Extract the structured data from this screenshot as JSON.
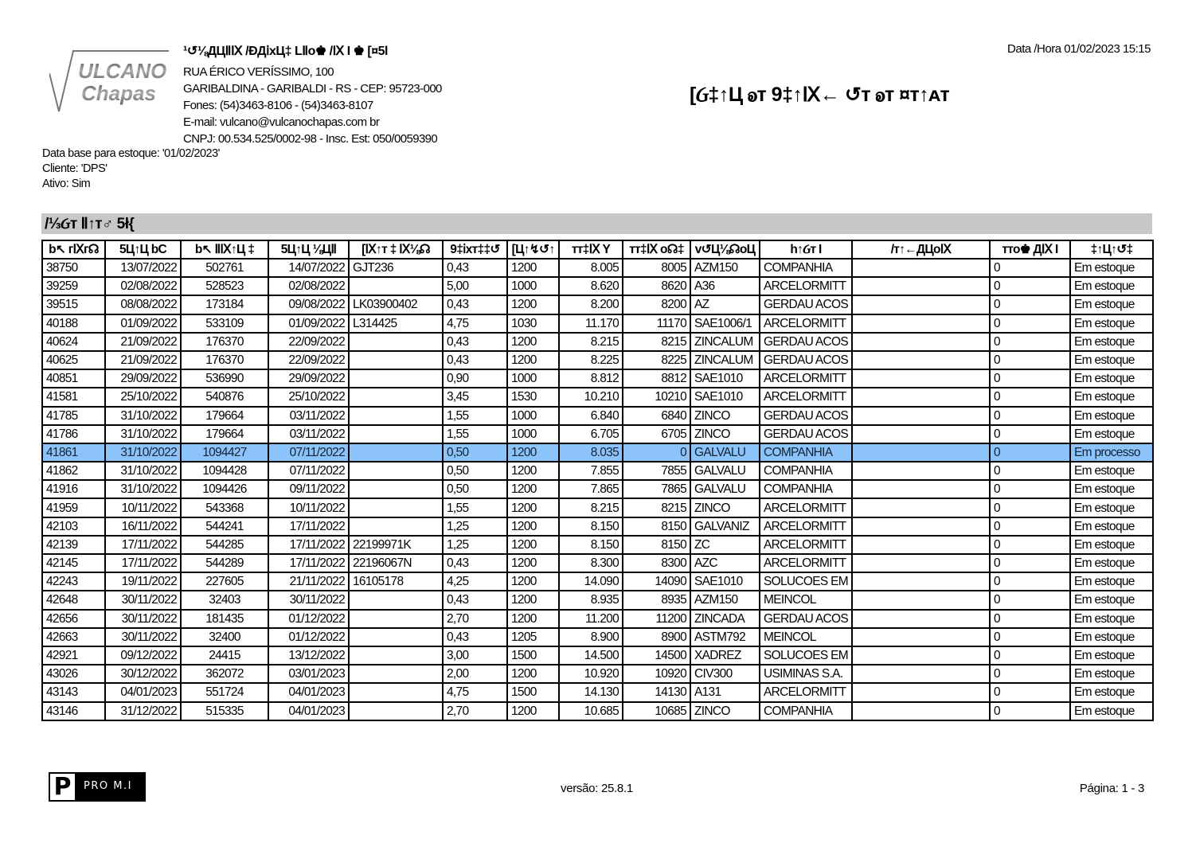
{
  "header": {
    "logo_text_line1": "ULCANO",
    "logo_text_line2": "Chapas",
    "company_name": "¹↺⅛ДЦⅡⅨ /ÐДⅰxЦ‡ LⅡo♚ /Ⅸ I ♚ [¤5l",
    "address_lines": [
      "RUA ÉRICO VERÍSSIMO, 100",
      "GARIBALDINA - GARIBALDI - RS - CEP: 95723-000",
      "Fones: (54)3463-8106 - (54)3463-8107",
      "E-mail: vulcano@vulcanochapas.com br",
      "CNPJ: 00.534.525/0002-98 - Insc. Est: 050/0059390"
    ],
    "datetime": "Data /Hora 01/02/2023 15:15",
    "report_title": "[Ᏽ‡↑Ц ꭷᴛ 9‡↑Ⅸ← ↺ᴛ ꭷᴛ ¤ᴛ↑ᴀᴛ"
  },
  "filters": [
    "Data base para estoque: '01/02/2023'",
    "Cliente: 'DPS'",
    "Ativo: Sim"
  ],
  "section_title": "/⅓Ᏽᴛ Ⅱ↑ᴛ♂ 5ł{",
  "table": {
    "columns": [
      "b↖ гⅨг☊",
      "5Ц↑Ц bC",
      "b↖ ⅡⅨ↑Ц ‡",
      "5Ц↑Ц ⅛ЦⅡ",
      "[Ⅸ↑ᴛ ‡ Ⅸ⅛☊",
      "9‡ⅰxᴛ‡‡↺",
      "[Ц↑↯↺↑",
      "ᴛт‡Ⅸ  Y",
      "ᴛт‡Ⅸ o☊‡",
      "v↺Ц⅛☊oЦ",
      "h↑Ᏽᴛ I",
      "/ᴛ↑←ДЦoⅨ",
      "ᴛто♚ ДⅨ I",
      "‡↑Ц↑↺‡"
    ],
    "rows": [
      [
        "38750",
        "13/07/2022",
        "502761",
        "14/07/2022",
        "GJT236",
        "0,43",
        "1200",
        "8.005",
        "8005",
        "AZM150",
        "COMPANHIA",
        "",
        "0",
        "Em estoque"
      ],
      [
        "39259",
        "02/08/2022",
        "528523",
        "02/08/2022",
        "",
        "5,00",
        "1000",
        "8.620",
        "8620",
        "A36",
        "ARCELORMITT",
        "",
        "0",
        "Em estoque"
      ],
      [
        "39515",
        "08/08/2022",
        "173184",
        "09/08/2022",
        "LK03900402",
        "0,43",
        "1200",
        "8.200",
        "8200",
        " AZ",
        "GERDAU ACOS",
        "",
        "0",
        "Em estoque"
      ],
      [
        "40188",
        "01/09/2022",
        "533109",
        "01/09/2022",
        "L314425",
        "4,75",
        "1030",
        "11.170",
        "11170",
        "SAE1006/1",
        "ARCELORMITT",
        "",
        "0",
        "Em estoque"
      ],
      [
        "40624",
        "21/09/2022",
        "176370",
        "22/09/2022",
        "",
        "0,43",
        "1200",
        "8.215",
        "8215",
        "ZINCALUM",
        "GERDAU ACOS",
        "",
        "0",
        "Em estoque"
      ],
      [
        "40625",
        "21/09/2022",
        "176370",
        "22/09/2022",
        "",
        "0,43",
        "1200",
        "8.225",
        "8225",
        "ZINCALUM",
        "GERDAU ACOS",
        "",
        "0",
        "Em estoque"
      ],
      [
        "40851",
        "29/09/2022",
        "536990",
        "29/09/2022",
        "",
        "0,90",
        "1000",
        "8.812",
        "8812",
        "SAE1010",
        "ARCELORMITT",
        "",
        "0",
        "Em estoque"
      ],
      [
        "41581",
        "25/10/2022",
        "540876",
        "25/10/2022",
        "",
        "3,45",
        "1530",
        "10.210",
        "10210",
        "SAE1010",
        "ARCELORMITT",
        "",
        "0",
        "Em estoque"
      ],
      [
        "41785",
        "31/10/2022",
        "179664",
        "03/11/2022",
        "",
        "1,55",
        "1000",
        "6.840",
        "6840",
        "ZINCO",
        "GERDAU ACOS",
        "",
        "0",
        "Em estoque"
      ],
      [
        "41786",
        "31/10/2022",
        "179664",
        "03/11/2022",
        "",
        "1,55",
        "1000",
        "6.705",
        "6705",
        "ZINCO",
        "GERDAU ACOS",
        "",
        "0",
        "Em estoque"
      ],
      [
        "41861",
        "31/10/2022",
        "1094427",
        "07/11/2022",
        "",
        "0,50",
        "1200",
        "8.035",
        "0",
        "GALVALU",
        "COMPANHIA",
        "",
        "0",
        "Em processo"
      ],
      [
        "41862",
        "31/10/2022",
        "1094428",
        "07/11/2022",
        "",
        "0,50",
        "1200",
        "7.855",
        "7855",
        "GALVALU",
        "COMPANHIA",
        "",
        "0",
        "Em estoque"
      ],
      [
        "41916",
        "31/10/2022",
        "1094426",
        "09/11/2022",
        "",
        "0,50",
        "1200",
        "7.865",
        "7865",
        "GALVALU",
        "COMPANHIA",
        "",
        "0",
        "Em estoque"
      ],
      [
        "41959",
        "10/11/2022",
        "543368",
        "10/11/2022",
        "",
        "1,55",
        "1200",
        "8.215",
        "8215",
        "ZINCO",
        "ARCELORMITT",
        "",
        "0",
        "Em estoque"
      ],
      [
        "42103",
        "16/11/2022",
        "544241",
        "17/11/2022",
        "",
        "1,25",
        "1200",
        "8.150",
        "8150",
        "GALVANIZ",
        "ARCELORMITT",
        "",
        "0",
        "Em estoque"
      ],
      [
        "42139",
        "17/11/2022",
        "544285",
        "17/11/2022",
        "22199971K",
        "1,25",
        "1200",
        "8.150",
        "8150",
        "ZC",
        "ARCELORMITT",
        "",
        "0",
        "Em estoque"
      ],
      [
        "42145",
        "17/11/2022",
        "544289",
        "17/11/2022",
        "22196067N",
        "0,43",
        "1200",
        "8.300",
        "8300",
        "AZC",
        "ARCELORMITT",
        "",
        "0",
        "Em estoque"
      ],
      [
        "42243",
        "19/11/2022",
        "227605",
        "21/11/2022",
        "16105178",
        "4,25",
        "1200",
        "14.090",
        "14090",
        "SAE1010",
        "SOLUCOES EM",
        "",
        "0",
        "Em estoque"
      ],
      [
        "42648",
        "30/11/2022",
        "32403",
        "30/11/2022",
        "",
        "0,43",
        "1200",
        "8.935",
        "8935",
        "AZM150",
        "MEINCOL",
        "",
        "0",
        "Em estoque"
      ],
      [
        "42656",
        "30/11/2022",
        "181435",
        "01/12/2022",
        "",
        "2,70",
        "1200",
        "11.200",
        "11200",
        "ZINCADA",
        "GERDAU ACOS",
        "",
        "0",
        "Em estoque"
      ],
      [
        "42663",
        "30/11/2022",
        "32400",
        "01/12/2022",
        "",
        "0,43",
        "1205",
        "8.900",
        "8900",
        "ASTM792",
        "MEINCOL",
        "",
        "0",
        "Em estoque"
      ],
      [
        "42921",
        "09/12/2022",
        "24415",
        "13/12/2022",
        "",
        "3,00",
        "1500",
        "14.500",
        "14500",
        "XADREZ",
        "SOLUCOES EM",
        "",
        "0",
        "Em estoque"
      ],
      [
        "43026",
        "30/12/2022",
        "362072",
        "03/01/2023",
        "",
        "2,00",
        "1200",
        "10.920",
        "10920",
        "CIV300",
        "USIMINAS S.A.",
        "",
        "0",
        "Em estoque"
      ],
      [
        "43143",
        "04/01/2023",
        "551724",
        "04/01/2023",
        "",
        "4,75",
        "1500",
        "14.130",
        "14130",
        "A131",
        "ARCELORMITT",
        "",
        "0",
        "Em estoque"
      ],
      [
        "43146",
        "31/12/2022",
        "515335",
        "04/01/2023",
        "",
        "2,70",
        "1200",
        "10.685",
        "10685",
        "ZINCO",
        "COMPANHIA",
        "",
        "0",
        "Em estoque"
      ]
    ],
    "highlighted_row_index": 10,
    "highlight_color": "#8cc3fb"
  },
  "footer": {
    "logo_letter": "P",
    "logo_text": "PRO M.I",
    "version": "versão: 25.8.1",
    "page": "Página: 1 - 3"
  }
}
